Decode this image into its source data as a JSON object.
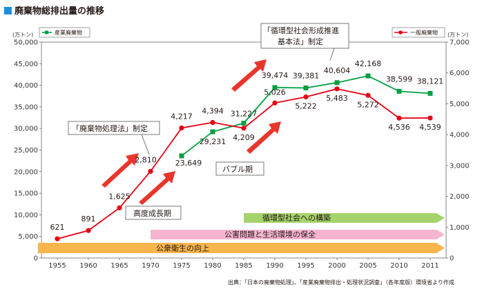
{
  "title": "廃棄物総排出量の推移",
  "source": "出典：「日本の廃棄物処理」、「産業廃棄物排出・処理状況調査」（各年度版）環境省より作成",
  "colors": {
    "industrial": "#00a040",
    "general": "#e60012",
    "arrow": "#e8362d",
    "band_green": "#a5d36b",
    "band_pink": "#f6b4d0",
    "band_orange": "#f7b54c",
    "title_square": "#1f8fd6"
  },
  "annotations": {
    "law1": "「廃棄物処理法」制定",
    "law2_line1": "「循環型社会形成推進",
    "law2_line2": "基本法」制定",
    "growth": "高度成長期",
    "bubble": "バブル期"
  },
  "bands": [
    {
      "label": "循環型社会への構築",
      "from": 1985,
      "color_key": "band_green"
    },
    {
      "label": "公害問題と生活環境の保全",
      "from": 1970,
      "color_key": "band_pink"
    },
    {
      "label": "公衆衛生の向上",
      "from": 1955,
      "color_key": "band_orange"
    }
  ],
  "chart_data": {
    "type": "line",
    "categories": [
      "1955",
      "1960",
      "1965",
      "1970",
      "1975",
      "1980",
      "1985",
      "1990",
      "1995",
      "2000",
      "2005",
      "2010",
      "2011"
    ],
    "left_axis": {
      "unit": "(万トン)",
      "ylim": [
        0,
        50000
      ],
      "ticks": [
        "0",
        "5,000",
        "10,000",
        "15,000",
        "20,000",
        "25,000",
        "30,000",
        "35,000",
        "40,000",
        "45,000",
        "50,000"
      ]
    },
    "right_axis": {
      "unit": "(万トン)",
      "ylim": [
        0,
        7000
      ],
      "ticks": [
        "0",
        "1,000",
        "2,000",
        "3,000",
        "4,000",
        "5,000",
        "6,000",
        "7,000"
      ]
    },
    "series": [
      {
        "name": "産業廃棄物",
        "axis": "left",
        "color_key": "industrial",
        "x": [
          "1975",
          "1980",
          "1985",
          "1990",
          "1995",
          "2000",
          "2005",
          "2010",
          "2011"
        ],
        "values": [
          23649,
          29231,
          31227,
          39474,
          39381,
          40604,
          42168,
          38599,
          38121
        ],
        "labels": [
          "23,649",
          "29,231",
          "31,227",
          "39,474",
          "39,381",
          "40,604",
          "42,168",
          "38,599",
          "38,121"
        ]
      },
      {
        "name": "一般廃棄物",
        "axis": "right",
        "color_key": "general",
        "x": [
          "1955",
          "1960",
          "1965",
          "1970",
          "1975",
          "1980",
          "1985",
          "1990",
          "1995",
          "2000",
          "2005",
          "2010",
          "2011"
        ],
        "values": [
          621,
          891,
          1625,
          2810,
          4217,
          4394,
          4209,
          5026,
          5222,
          5483,
          5272,
          4536,
          4539
        ],
        "labels": [
          "621",
          "891",
          "1,625",
          "2,810",
          "4,217",
          "4,394",
          "4,209",
          "5,026",
          "5,222",
          "5,483",
          "5,272",
          "4,536",
          "4,539"
        ]
      }
    ],
    "grid": false,
    "legend_placement": "top"
  }
}
